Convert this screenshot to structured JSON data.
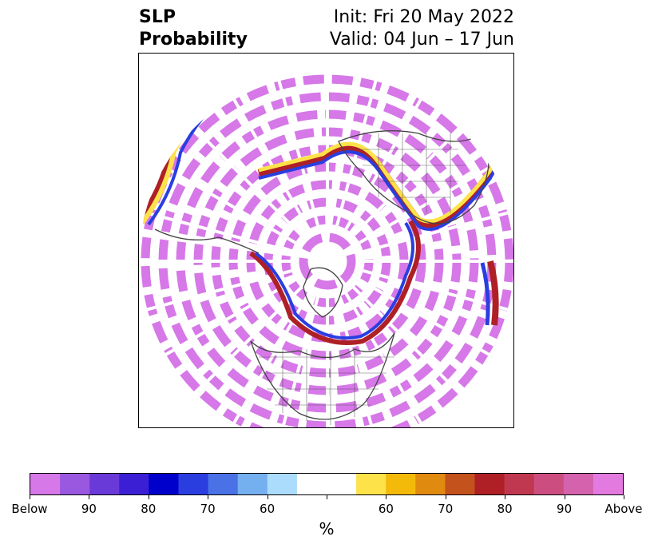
{
  "title": {
    "left_line1": "SLP",
    "left_line2": "Probability",
    "right_line1": "Init: Fri 20 May 2022",
    "right_line2": "Valid: 04 Jun – 17 Jun"
  },
  "colorbar": {
    "colors": [
      "#d678e8",
      "#9a57e0",
      "#6a3ad8",
      "#3a1fd4",
      "#0000cc",
      "#2a3ee0",
      "#4a72e6",
      "#74b0f0",
      "#acdcfc",
      "#ffffff",
      "#ffffff",
      "#fde24a",
      "#f4ba0a",
      "#e18a10",
      "#c4521c",
      "#ae2026",
      "#c03850",
      "#cc4e80",
      "#d462ac",
      "#e27ae0"
    ],
    "tick_labels": [
      "Below",
      "90",
      "80",
      "70",
      "60",
      "",
      "60",
      "70",
      "80",
      "90",
      "Above"
    ],
    "units": "%"
  },
  "map": {
    "projection": "north-polar-stereographic",
    "fill_colors": {
      "dominant": "#d678e8",
      "blue": "#2a3ee0",
      "yellow": "#fde24a",
      "red": "#ae2026",
      "coast": "#444444"
    }
  }
}
